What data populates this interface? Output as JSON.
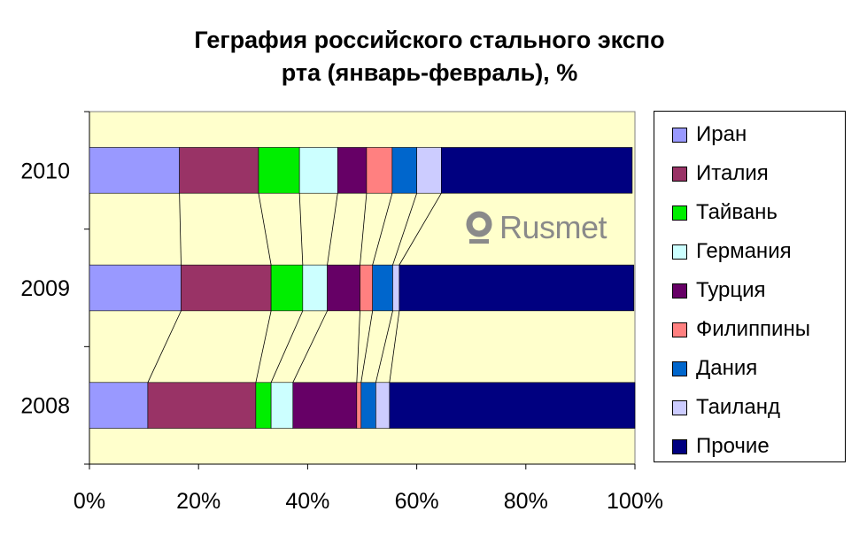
{
  "title_line1": "Геграфия российского стального экспо",
  "title_line2": "рта (январь-февраль), %",
  "logo_text": "Rusmet",
  "chart_data": {
    "type": "bar",
    "orientation": "horizontal",
    "stacked": "percent",
    "title": "Геграфия российского стального экспорта (январь-февраль), %",
    "categories": [
      "2010",
      "2009",
      "2008"
    ],
    "x_ticks": [
      "0%",
      "20%",
      "40%",
      "60%",
      "80%",
      "100%"
    ],
    "xlim": [
      0,
      100
    ],
    "legend_position": "right",
    "series_lines": true,
    "plot_background": "#ffffcc",
    "series": [
      {
        "name": "Иран",
        "color": "#9999ff",
        "values": [
          16.5,
          16.8,
          10.7
        ]
      },
      {
        "name": "Италия",
        "color": "#993366",
        "values": [
          14.5,
          16.5,
          19.8
        ]
      },
      {
        "name": "Тайвань",
        "color": "#00ee00",
        "values": [
          7.5,
          5.8,
          2.8
        ]
      },
      {
        "name": "Германия",
        "color": "#ccffff",
        "values": [
          7.0,
          4.5,
          4.0
        ]
      },
      {
        "name": "Турция",
        "color": "#660066",
        "values": [
          5.3,
          6.0,
          11.7
        ]
      },
      {
        "name": "Филиппины",
        "color": "#ff8080",
        "values": [
          4.7,
          2.3,
          0.8
        ]
      },
      {
        "name": "Дания",
        "color": "#0066cc",
        "values": [
          4.5,
          3.7,
          2.7
        ]
      },
      {
        "name": "Таиланд",
        "color": "#ccccff",
        "values": [
          4.5,
          1.2,
          2.5
        ]
      },
      {
        "name": "Прочие",
        "color": "#000080",
        "values": [
          35.0,
          43.0,
          45.0
        ]
      }
    ]
  }
}
